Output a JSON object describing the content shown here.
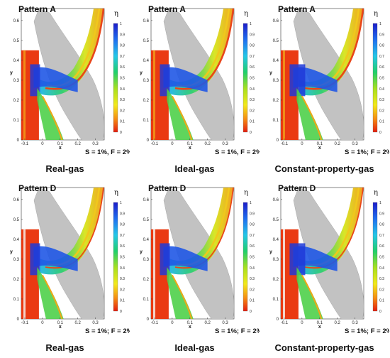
{
  "panels": [
    {
      "pattern": "Pattern A",
      "params": "S = 1%, F = 2%",
      "caption": "Real-gas",
      "case": "A-real"
    },
    {
      "pattern": "Pattern A",
      "params": "S = 1%, F = 2%",
      "caption": "Ideal-gas",
      "case": "A-ideal"
    },
    {
      "pattern": "Pattern A",
      "params": "S = 1%; F = 2%",
      "caption": "Constant-property-gas",
      "case": "A-const"
    },
    {
      "pattern": "Pattern D",
      "params": "S = 1%; F = 2%",
      "caption": "Real-gas",
      "case": "D-real"
    },
    {
      "pattern": "Pattern D",
      "params": "S = 1%; F = 2%",
      "caption": "Ideal-gas",
      "case": "D-ideal"
    },
    {
      "pattern": "Pattern D",
      "params": "S = 1%; F = 2%",
      "caption": "Constant-property-gas",
      "case": "D-const"
    }
  ],
  "axes": {
    "xlabel": "x",
    "ylabel": "y",
    "xticks": [
      "-0.1",
      "0",
      "0.1",
      "0.2",
      "0.3"
    ],
    "yticks": [
      "0",
      "0.1",
      "0.2",
      "0.3",
      "0.4",
      "0.5",
      "0.6"
    ]
  },
  "colorbar": {
    "label": "η",
    "ticks": [
      "1",
      "0.9",
      "0.8",
      "0.7",
      "0.6",
      "0.5",
      "0.4",
      "0.3",
      "0.2",
      "0.1",
      "0"
    ]
  },
  "colors": {
    "blade": "#c0c0c0",
    "high_eta": "#1a2fd0",
    "low_eta": "#e42410"
  }
}
